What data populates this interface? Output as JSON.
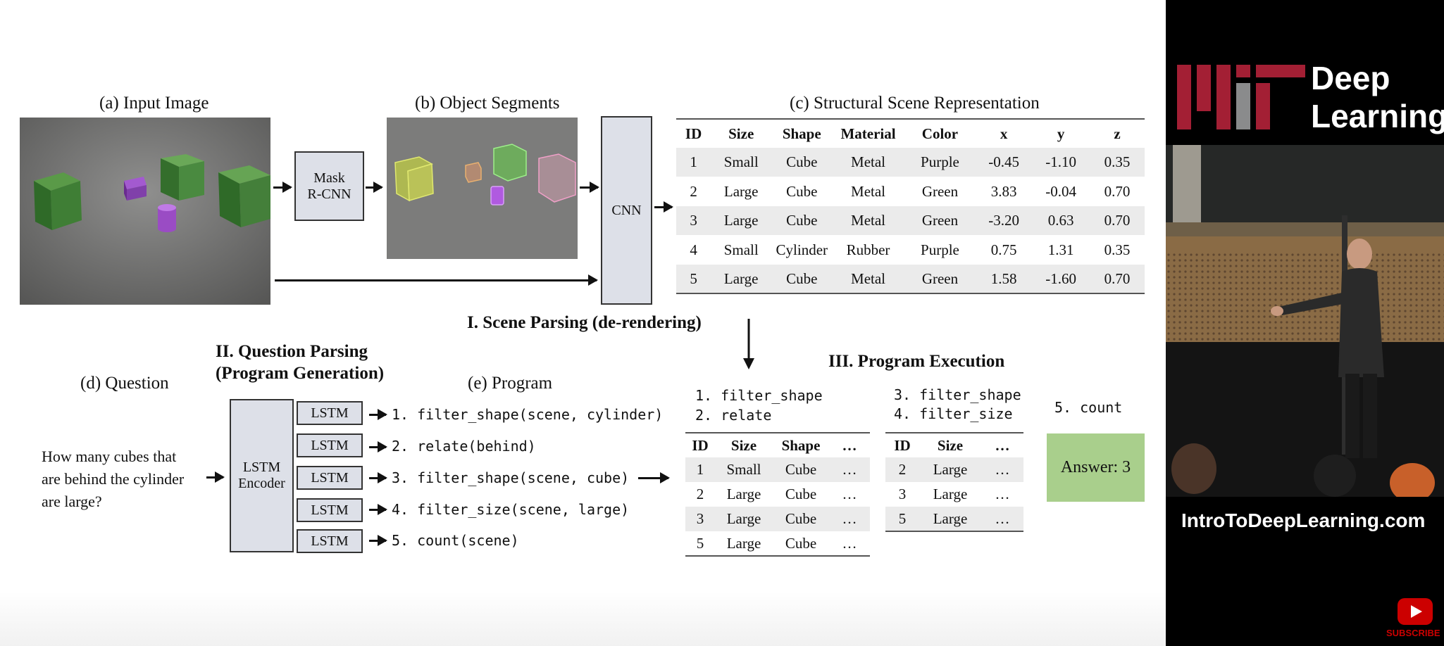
{
  "diagram": {
    "caption_a": "(a) Input Image",
    "caption_b": "(b) Object Segments",
    "caption_c": "(c) Structural Scene Representation",
    "caption_d": "(d) Question",
    "caption_e": "(e) Program",
    "mask_rcnn_1": "Mask",
    "mask_rcnn_2": "R-CNN",
    "cnn_label": "CNN",
    "stage1_title": "I. Scene Parsing (de-rendering)",
    "stage2_title_1": "II. Question Parsing",
    "stage2_title_2": "(Program Generation)",
    "stage3_title": "III. Program Execution",
    "question_lines": [
      "How many cubes that",
      "are behind the cylinder",
      "are large?"
    ],
    "encoder_label_1": "LSTM",
    "encoder_label_2": "Encoder",
    "lstm_labels": [
      "LSTM",
      "LSTM",
      "LSTM",
      "LSTM",
      "LSTM"
    ],
    "program_lines": [
      "1. filter_shape(scene, cylinder)",
      "2. relate(behind)",
      "3. filter_shape(scene, cube)",
      "4. filter_size(scene, large)",
      "5. count(scene)"
    ],
    "scene_table": {
      "headers": [
        "ID",
        "Size",
        "Shape",
        "Material",
        "Color",
        "x",
        "y",
        "z"
      ],
      "rows": [
        [
          "1",
          "Small",
          "Cube",
          "Metal",
          "Purple",
          "-0.45",
          "-1.10",
          "0.35"
        ],
        [
          "2",
          "Large",
          "Cube",
          "Metal",
          "Green",
          "3.83",
          "-0.04",
          "0.70"
        ],
        [
          "3",
          "Large",
          "Cube",
          "Metal",
          "Green",
          "-3.20",
          "0.63",
          "0.70"
        ],
        [
          "4",
          "Small",
          "Cylinder",
          "Rubber",
          "Purple",
          "0.75",
          "1.31",
          "0.35"
        ],
        [
          "5",
          "Large",
          "Cube",
          "Metal",
          "Green",
          "1.58",
          "-1.60",
          "0.70"
        ]
      ]
    },
    "exec_step_a": [
      "1. filter_shape",
      "2. relate"
    ],
    "exec_step_b": [
      "3. filter_shape",
      "4. filter_size"
    ],
    "exec_step_c": "5. count",
    "exec_table_1": {
      "headers": [
        "ID",
        "Size",
        "Shape",
        "…"
      ],
      "rows": [
        [
          "1",
          "Small",
          "Cube",
          "…"
        ],
        [
          "2",
          "Large",
          "Cube",
          "…"
        ],
        [
          "3",
          "Large",
          "Cube",
          "…"
        ],
        [
          "5",
          "Large",
          "Cube",
          "…"
        ]
      ]
    },
    "exec_table_2": {
      "headers": [
        "ID",
        "Size",
        "…"
      ],
      "rows": [
        [
          "2",
          "Large",
          "…"
        ],
        [
          "3",
          "Large",
          "…"
        ],
        [
          "5",
          "Large",
          "…"
        ]
      ]
    },
    "answer": "Answer: 3"
  },
  "video_panel": {
    "logo_line_1": "Deep",
    "logo_line_2": "Learning",
    "website": "IntroToDeepLearning.com",
    "subscribe_label": "SUBSCRIBE"
  },
  "colors": {
    "answer_bg": "#a9cf8c",
    "box_fill": "#dde0e8",
    "mit_red": "#a31f34",
    "youtube_red": "#cc0000"
  }
}
